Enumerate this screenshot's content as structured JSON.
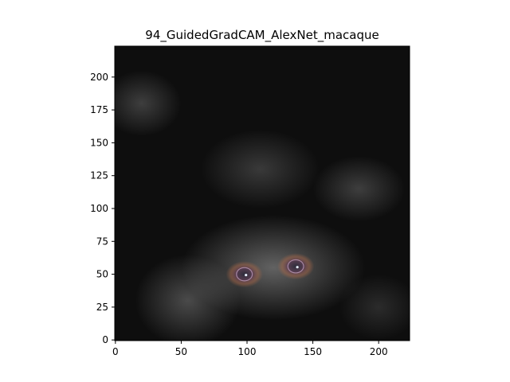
{
  "chart_data": {
    "type": "heatmap",
    "title": "94_GuidedGradCAM_AlexNet_macaque",
    "xlabel": "",
    "ylabel": "",
    "xlim": [
      -0.5,
      223.5
    ],
    "ylim": [
      223.5,
      -0.5
    ],
    "xticks": [
      0,
      50,
      100,
      150,
      200
    ],
    "yticks": [
      0,
      25,
      50,
      75,
      100,
      125,
      150,
      175,
      200
    ],
    "grid": false,
    "legend": "none",
    "image_description": "Guided Grad-CAM saliency map of a macaque face rendered as a dark grayscale image; strongest activations at the two eyes",
    "highlights": [
      {
        "label": "left-eye",
        "x": 98,
        "y": 50,
        "intensity": 0.9
      },
      {
        "label": "right-eye",
        "x": 137,
        "y": 56,
        "intensity": 0.9
      }
    ],
    "glow_regions": [
      {
        "x": 120,
        "y": 55,
        "rx": 70,
        "ry": 40,
        "intensity": 0.35
      },
      {
        "x": 55,
        "y": 30,
        "rx": 40,
        "ry": 35,
        "intensity": 0.25
      },
      {
        "x": 20,
        "y": 180,
        "rx": 30,
        "ry": 25,
        "intensity": 0.2
      },
      {
        "x": 110,
        "y": 130,
        "rx": 45,
        "ry": 30,
        "intensity": 0.18
      },
      {
        "x": 185,
        "y": 115,
        "rx": 35,
        "ry": 25,
        "intensity": 0.2
      },
      {
        "x": 200,
        "y": 25,
        "rx": 30,
        "ry": 25,
        "intensity": 0.12
      }
    ]
  }
}
